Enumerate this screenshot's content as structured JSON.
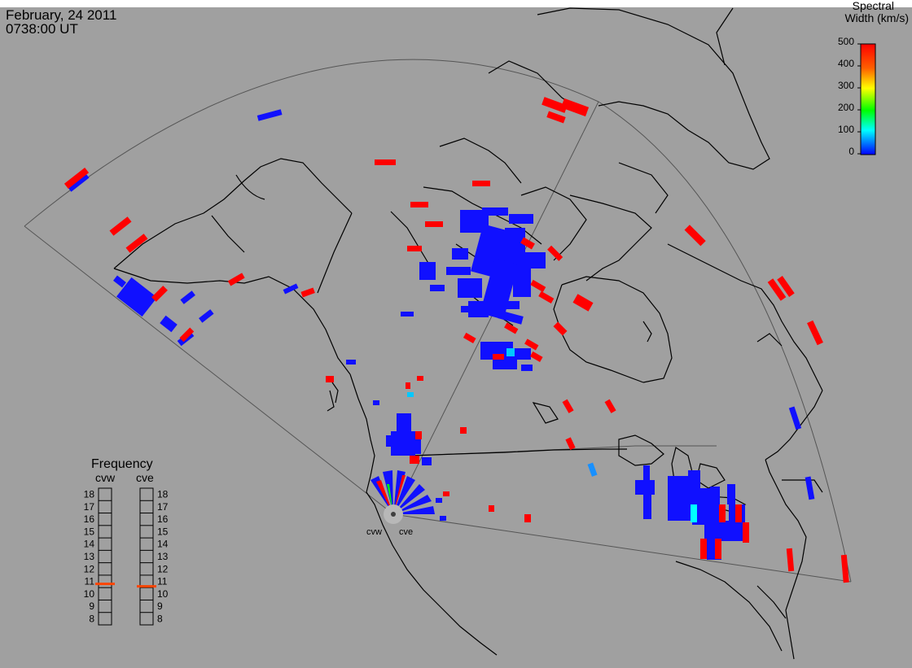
{
  "header": {
    "date": "February, 24 2011",
    "time": "0738:00 UT"
  },
  "colorbar": {
    "title_line1": "Spectral",
    "title_line2": "Width (km/s)",
    "ticks": [
      "500",
      "400",
      "300",
      "200",
      "100",
      "0"
    ],
    "stops": [
      "#ff0000",
      "#ff8000",
      "#ffff00",
      "#00ff00",
      "#00ffff",
      "#0000ff"
    ]
  },
  "frequency_panel": {
    "title": "Frequency",
    "radars": [
      {
        "name": "cvw",
        "selected_mhz": 10.8
      },
      {
        "name": "cve",
        "selected_mhz": 10.6
      }
    ],
    "scale": [
      "18",
      "17",
      "16",
      "15",
      "14",
      "13",
      "12",
      "11",
      "10",
      "9",
      "8"
    ],
    "marker_color": "#ff4400"
  },
  "stations": [
    {
      "label": "cvw"
    },
    {
      "label": "cve"
    }
  ],
  "colors": {
    "background": "#a0a0a0",
    "low_width": "#1010ff",
    "high_width": "#ff0000",
    "mid_width": "#00c8ff",
    "coastline": "#000000",
    "fov_outline": "#555555"
  }
}
